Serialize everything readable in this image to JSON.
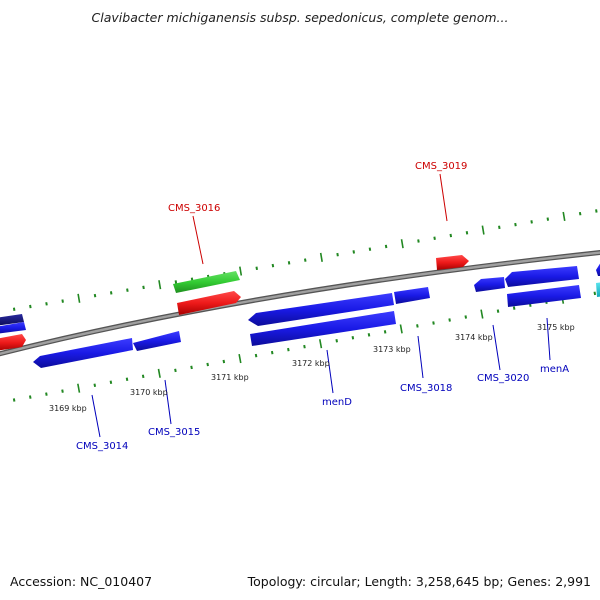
{
  "header": {
    "title": "Clavibacter michiganensis subsp. sepedonicus, complete genom..."
  },
  "footer": {
    "accession": "Accession: NC_010407",
    "summary": "Topology: circular; Length: 3,258,645 bp; Genes: 2,991"
  },
  "axis": {
    "tick_labels": [
      "3169 kbp",
      "3170 kbp",
      "3171 kbp",
      "3172 kbp",
      "3173 kbp",
      "3174 kbp",
      "3175 kbp"
    ]
  },
  "gene_labels": {
    "red": [
      "CMS_3016",
      "CMS_3019"
    ],
    "blue": [
      "CMS_3014",
      "CMS_3015",
      "menD",
      "CMS_3018",
      "CMS_3020",
      "menA"
    ]
  },
  "colors": {
    "backbone": "#8c8c8c",
    "forward_gene": "#1a1ae6",
    "reverse_gene": "#1a1ae6",
    "rna_gene": "#e61a1a",
    "pseudo_gene": "#33cc33",
    "dark_gene": "#14147a",
    "cyan_gene": "#19c8d8",
    "tick_color": "#228822",
    "red_label": "#cc0000",
    "blue_label": "#0000bb"
  }
}
